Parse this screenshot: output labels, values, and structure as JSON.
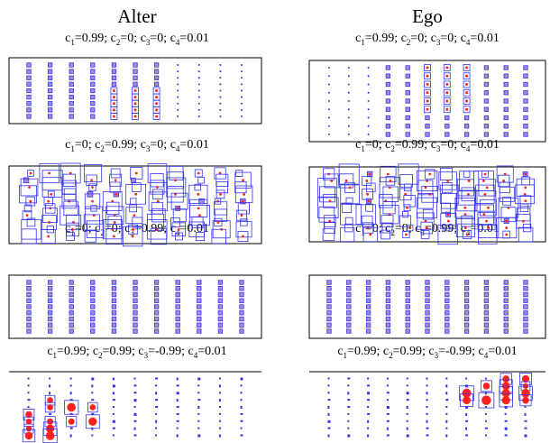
{
  "columns": [
    {
      "title": "Alter"
    },
    {
      "title": "Ego"
    }
  ],
  "rows": [
    {
      "caption": {
        "c1": "0.99",
        "c2": "0",
        "c3": "0",
        "c4": "0.01"
      },
      "pattern": "uniform-with-highlight"
    },
    {
      "caption": {
        "c1": "0",
        "c2": "0.99",
        "c3": "0",
        "c4": "0.01"
      },
      "pattern": "large-variable"
    },
    {
      "caption": {
        "c1": "0",
        "c2": "0",
        "c3": "0.99",
        "c4": "0.01"
      },
      "pattern": "uniform"
    },
    {
      "caption": {
        "c1": "0.99",
        "c2": "0.99",
        "c3": "-0.99",
        "c4": "0.01"
      },
      "pattern": "sparse-blobs"
    }
  ],
  "colors": {
    "box": "#3333ee",
    "fill": "#9a7fd6",
    "center": "#ff2020",
    "frame": "#000000"
  }
}
